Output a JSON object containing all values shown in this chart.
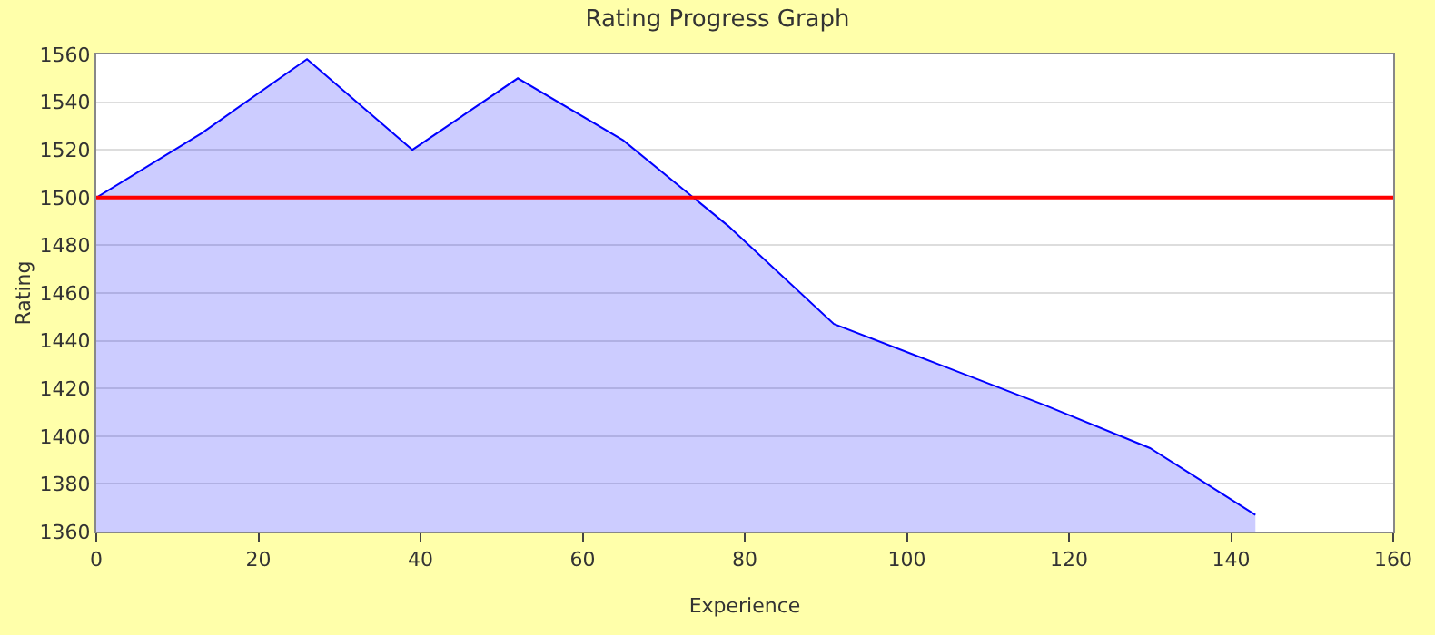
{
  "chart_data": {
    "type": "area",
    "title": "Rating Progress Graph",
    "xlabel": "Experience",
    "ylabel": "Rating",
    "x": [
      0,
      13,
      26,
      39,
      52,
      65,
      78,
      91,
      104,
      117,
      130,
      143
    ],
    "series": [
      {
        "color": "#0000ff",
        "values": [
          1500,
          1527,
          1558,
          1520,
          1550,
          1524,
          1488,
          1447,
          1430,
          1413,
          1395,
          1367
        ]
      }
    ],
    "xlim": [
      0,
      160
    ],
    "xticks": [
      0,
      20,
      40,
      60,
      80,
      100,
      120,
      140,
      160
    ],
    "ylim": [
      1360,
      1560
    ],
    "yticks": [
      1360,
      1380,
      1400,
      1420,
      1440,
      1460,
      1480,
      1500,
      1520,
      1540,
      1560
    ],
    "ref_lines": [
      {
        "axis": "y",
        "value": 1500,
        "color": "#ff0000"
      }
    ],
    "grid": "y",
    "marker": "none",
    "line_style": "solid"
  }
}
